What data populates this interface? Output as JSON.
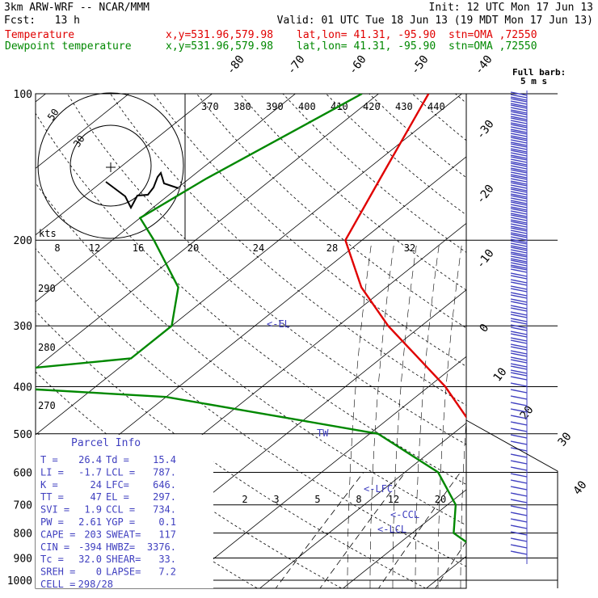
{
  "header": {
    "model": "3km ARW-WRF -- NCAR/MMM",
    "init": "Init: 12 UTC Mon 17 Jun 13",
    "fcst": "Fcst:   13 h",
    "valid": "Valid: 01 UTC Tue 18 Jun 13 (19 MDT Mon 17 Jun 13)",
    "temp_label": "Temperature",
    "dew_label": "Dewpoint temperature",
    "xy": "x,y=531.96,579.98",
    "latlon": "lat,lon= 41.31, -95.90",
    "stn": "stn=OMA ,72550"
  },
  "colors": {
    "temperature": "#e00000",
    "dewpoint": "#008800",
    "wind": "#4040c0"
  },
  "pressure_labels": [
    "100",
    "200",
    "300",
    "400",
    "500",
    "600",
    "700",
    "800",
    "900",
    "1000"
  ],
  "isotherm_labels": [
    "-80",
    "-70",
    "-60",
    "-50",
    "-40",
    "-30",
    "-20",
    "-10",
    "0",
    "10",
    "20",
    "30",
    "40"
  ],
  "theta_labels": [
    "370",
    "380",
    "390",
    "400",
    "410",
    "420",
    "430",
    "440"
  ],
  "dry_adiabat_labels": [
    "290",
    "280",
    "270"
  ],
  "mixing_ratio_labels": [
    "2",
    "3",
    "5",
    "8",
    "12",
    "20"
  ],
  "hodograph": {
    "kts_label": "kts",
    "speed_labels": [
      "8",
      "12",
      "16",
      "20",
      "24",
      "28",
      "32"
    ],
    "ring_labels": [
      "50",
      "30"
    ]
  },
  "wind_title": "Full barb:",
  "wind_unit": "5 m s",
  "parcel_levels": {
    "el": "<-EL",
    "lfc": "<-LFC",
    "ccl": "<-CCL",
    "lcl": "<-LCL",
    "tw": "TW"
  },
  "parcel_info": {
    "title": "Parcel Info",
    "rows": [
      [
        "T  =",
        "26.4",
        "Td =",
        "15.4"
      ],
      [
        "LI =",
        "-1.7",
        "LCL =",
        "787."
      ],
      [
        "K  =",
        "24",
        "LFC=",
        "646."
      ],
      [
        "TT =",
        "47",
        "EL =",
        "297."
      ],
      [
        "SVI =",
        "1.9",
        "CCL =",
        "734."
      ],
      [
        "PW =",
        "2.61",
        "YGP =",
        "0.1"
      ],
      [
        "CAPE =",
        "203",
        "SWEAT=",
        "117"
      ],
      [
        "CIN =",
        "-394",
        "HWBZ=",
        "3376."
      ],
      [
        "Tc =",
        "32.0",
        "SHEAR=",
        "33."
      ],
      [
        "SREH =",
        "0",
        "LAPSE=",
        "7.2"
      ],
      [
        "CELL =",
        "298/28",
        "",
        ""
      ]
    ]
  },
  "chart_data": {
    "type": "line",
    "xlabel": "",
    "ylabel": "",
    "y_scale": "log pressure (hPa)",
    "ylim": [
      1000,
      100
    ],
    "series": [
      {
        "name": "Temperature",
        "points": [
          [
            100,
            -64
          ],
          [
            150,
            -57
          ],
          [
            200,
            -52
          ],
          [
            250,
            -43
          ],
          [
            300,
            -34
          ],
          [
            400,
            -18
          ],
          [
            500,
            -7
          ],
          [
            600,
            2
          ],
          [
            700,
            8
          ],
          [
            800,
            14
          ],
          [
            900,
            22
          ],
          [
            975,
            26.4
          ]
        ]
      },
      {
        "name": "Dewpoint temperature",
        "points": [
          [
            100,
            -72
          ],
          [
            150,
            -78
          ],
          [
            180,
            -80
          ],
          [
            200,
            -75
          ],
          [
            250,
            -65
          ],
          [
            300,
            -60
          ],
          [
            350,
            -60
          ],
          [
            390,
            -85
          ],
          [
            420,
            -50
          ],
          [
            470,
            -30
          ],
          [
            500,
            -19
          ],
          [
            600,
            -6
          ],
          [
            700,
            1
          ],
          [
            800,
            5
          ],
          [
            900,
            13
          ],
          [
            975,
            15.4
          ]
        ]
      }
    ]
  }
}
